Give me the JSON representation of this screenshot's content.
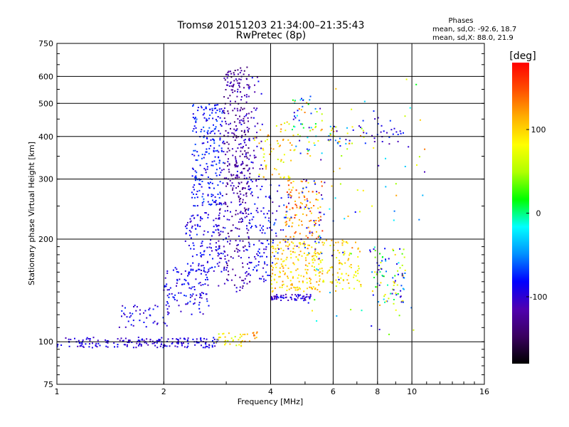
{
  "chart_data": {
    "type": "scatter",
    "title": "Tromsø 20151203 21:34:00–21:35:43",
    "subtitle": "RwPretec (8p)",
    "xlabel": "Frequency [MHz]",
    "ylabel": "Stationary phase Virtual Height [km]",
    "x_scale": "log2",
    "y_scale": "log",
    "xlim": [
      1,
      16
    ],
    "ylim": [
      75,
      750
    ],
    "x_ticks": [
      1,
      2,
      4,
      6,
      8,
      10,
      16
    ],
    "x_tick_labels": [
      "1",
      "2",
      "4",
      "6",
      "8",
      "10",
      "16"
    ],
    "y_ticks": [
      75,
      100,
      200,
      300,
      400,
      500,
      600,
      750
    ],
    "y_tick_labels": [
      "75",
      "100",
      "200",
      "300",
      "400",
      "500",
      "600",
      "750"
    ],
    "grid": true,
    "stats": {
      "heading": "Phases",
      "line_o": "mean, sd,O:  -92.6, 18.7",
      "line_x": "mean, sd,X:  88.0, 21.9"
    },
    "colorbar": {
      "label": "[deg]",
      "range": [
        -180,
        180
      ],
      "ticks": [
        -100,
        0,
        100
      ],
      "tick_labels": [
        "-100",
        "0",
        "100"
      ],
      "colors": [
        "#000000",
        "#3a0060",
        "#5000b0",
        "#0000ff",
        "#0090ff",
        "#00ffff",
        "#00ff00",
        "#b0ff00",
        "#ffff00",
        "#ffb000",
        "#ff5000",
        "#ff0000"
      ]
    },
    "series_clusters": [
      {
        "f": [
          1.0,
          1.95
        ],
        "h": [
          96,
          103
        ],
        "phase": [
          -115,
          -80
        ],
        "n": 110
      },
      {
        "f": [
          1.95,
          2.85
        ],
        "h": [
          96,
          103
        ],
        "phase": [
          -110,
          -75
        ],
        "n": 80
      },
      {
        "f": [
          2.8,
          3.35
        ],
        "h": [
          97,
          106
        ],
        "phase": [
          40,
          110
        ],
        "n": 30
      },
      {
        "f": [
          3.3,
          3.7
        ],
        "h": [
          100,
          108
        ],
        "phase": [
          90,
          140
        ],
        "n": 15
      },
      {
        "f": [
          1.5,
          2.1
        ],
        "h": [
          110,
          130
        ],
        "phase": [
          -110,
          -70
        ],
        "n": 45
      },
      {
        "f": [
          2.0,
          2.7
        ],
        "h": [
          120,
          165
        ],
        "phase": [
          -110,
          -70
        ],
        "n": 110
      },
      {
        "f": [
          2.3,
          3.0
        ],
        "h": [
          160,
          240
        ],
        "phase": [
          -110,
          -70
        ],
        "n": 130
      },
      {
        "f": [
          2.4,
          2.95
        ],
        "h": [
          250,
          500
        ],
        "phase": [
          -100,
          -60
        ],
        "n": 230
      },
      {
        "f": [
          2.8,
          3.5
        ],
        "h": [
          140,
          260
        ],
        "phase": [
          -140,
          -90
        ],
        "n": 140
      },
      {
        "f": [
          2.95,
          3.5
        ],
        "h": [
          260,
          640
        ],
        "phase": [
          -145,
          -100
        ],
        "n": 240
      },
      {
        "f": [
          3.4,
          4.0
        ],
        "h": [
          150,
          300
        ],
        "phase": [
          -110,
          -70
        ],
        "n": 110
      },
      {
        "f": [
          3.2,
          3.8
        ],
        "h": [
          300,
          600
        ],
        "phase": [
          -130,
          -80
        ],
        "n": 70
      },
      {
        "f": [
          3.6,
          4.6
        ],
        "h": [
          300,
          450
        ],
        "phase": [
          60,
          130
        ],
        "n": 60
      },
      {
        "f": [
          4.0,
          5.6
        ],
        "h": [
          140,
          200
        ],
        "phase": [
          70,
          130
        ],
        "n": 200
      },
      {
        "f": [
          4.4,
          5.6
        ],
        "h": [
          200,
          300
        ],
        "phase": [
          80,
          160
        ],
        "n": 110
      },
      {
        "f": [
          4.0,
          5.2
        ],
        "h": [
          132,
          138
        ],
        "phase": [
          -120,
          -80
        ],
        "n": 60
      },
      {
        "f": [
          4.0,
          5.6
        ],
        "h": [
          170,
          300
        ],
        "phase": [
          -120,
          -60
        ],
        "n": 70
      },
      {
        "f": [
          4.6,
          5.6
        ],
        "h": [
          350,
          520
        ],
        "phase": [
          -110,
          140
        ],
        "n": 60
      },
      {
        "f": [
          5.5,
          7.2
        ],
        "h": [
          140,
          200
        ],
        "phase": [
          60,
          120
        ],
        "n": 90
      },
      {
        "f": [
          5.8,
          7.5
        ],
        "h": [
          380,
          430
        ],
        "phase": [
          -120,
          150
        ],
        "n": 40
      },
      {
        "f": [
          7.6,
          9.6
        ],
        "h": [
          130,
          190
        ],
        "phase": [
          -120,
          100
        ],
        "n": 90
      },
      {
        "f": [
          7.6,
          9.5
        ],
        "h": [
          380,
          460
        ],
        "phase": [
          -120,
          -70
        ],
        "n": 25
      },
      {
        "f": [
          5.0,
          11.0
        ],
        "h": [
          105,
          600
        ],
        "phase": [
          -120,
          140
        ],
        "n": 90
      }
    ]
  }
}
